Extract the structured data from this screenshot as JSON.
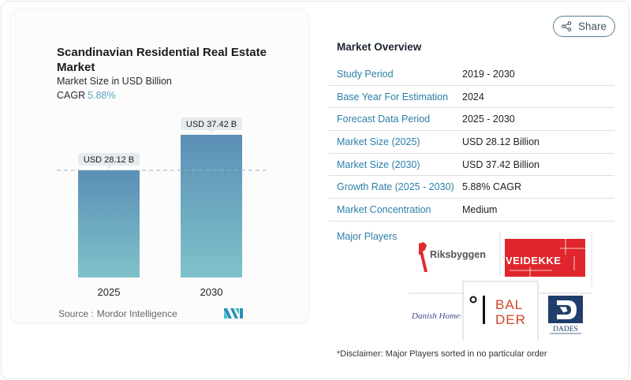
{
  "chart_card": {
    "title": "Scandinavian Residential Real Estate Market",
    "subtitle": "Market Size in USD Billion",
    "cagr_label": "CAGR",
    "cagr_value": "5.88%",
    "source_label": "Source :",
    "source_value": "Mordor Intelligence",
    "source_logo_icon": "mordor-intelligence-logo-icon"
  },
  "chart_data": {
    "type": "bar",
    "title": "Scandinavian Residential Real Estate Market",
    "subtitle": "Market Size in USD Billion",
    "categories": [
      "2025",
      "2030"
    ],
    "values": [
      28.12,
      37.42
    ],
    "data_labels": [
      "USD 28.12 B",
      "USD 37.42 B"
    ],
    "unit": "USD Billion",
    "xlabel": "",
    "ylabel": "",
    "ylim": [
      0,
      40
    ],
    "reference_line": {
      "value": 28.12,
      "style": "dashed"
    },
    "grid": false,
    "legend": "none",
    "colors": {
      "bar_top": "#5b8fb6",
      "bar_bottom": "#7ec0c9",
      "label_bg": "#e6ebee",
      "ref_line": "#9ab3c3"
    }
  },
  "share_button": {
    "label": "Share",
    "icon": "share-icon"
  },
  "overview": {
    "title": "Market Overview",
    "rows": [
      {
        "key": "Study Period",
        "value": "2019 - 2030"
      },
      {
        "key": "Base Year For Estimation",
        "value": "2024"
      },
      {
        "key": "Forecast Data Period",
        "value": "2025 - 2030"
      },
      {
        "key": "Market Size (2025)",
        "value": "USD 28.12 Billion"
      },
      {
        "key": "Market Size (2030)",
        "value": "USD 37.42 Billion"
      },
      {
        "key": "Growth Rate (2025 - 2030)",
        "value": "5.88% CAGR"
      },
      {
        "key": "Market Concentration",
        "value": "Medium"
      }
    ],
    "players_label": "Major Players",
    "players": [
      {
        "name": "Riksbyggen",
        "text": "Riksbyggen"
      },
      {
        "name": "Veidekke",
        "text": "VEIDEKKE"
      },
      {
        "name": "Danish Homes",
        "text": "Danish Homes"
      },
      {
        "name": "Balder",
        "text_line1": "BAL",
        "text_line2": "DER"
      },
      {
        "name": "Dades",
        "text": "DADES"
      }
    ],
    "disclaimer": "*Disclaimer: Major Players sorted in no particular order"
  }
}
